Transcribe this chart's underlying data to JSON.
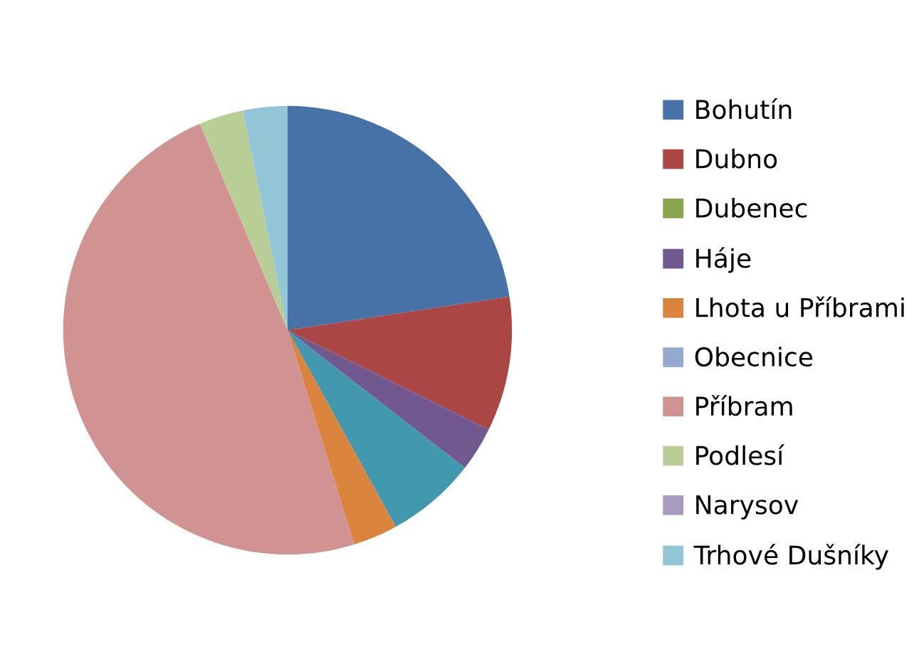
{
  "chart_data": {
    "type": "pie",
    "categories": [
      "Bohutín",
      "Dubno",
      "Dubenec",
      "Háje",
      null,
      "Lhota u Příbrami",
      "Obecnice",
      "Příbram",
      "Podlesí",
      "Narysov",
      "Trhové Dušníky"
    ],
    "values": [
      22.6,
      9.7,
      0,
      3.2,
      6.5,
      3.2,
      0,
      48.4,
      3.2,
      0,
      3.2
    ],
    "colors": [
      "#4672a8",
      "#aa4643",
      "#89a54e",
      "#71588f",
      "#4198af",
      "#db843d",
      "#93a9cf",
      "#d19392",
      "#b9cd96",
      "#a99bbd",
      "#92c5d6"
    ],
    "legend": "right"
  }
}
